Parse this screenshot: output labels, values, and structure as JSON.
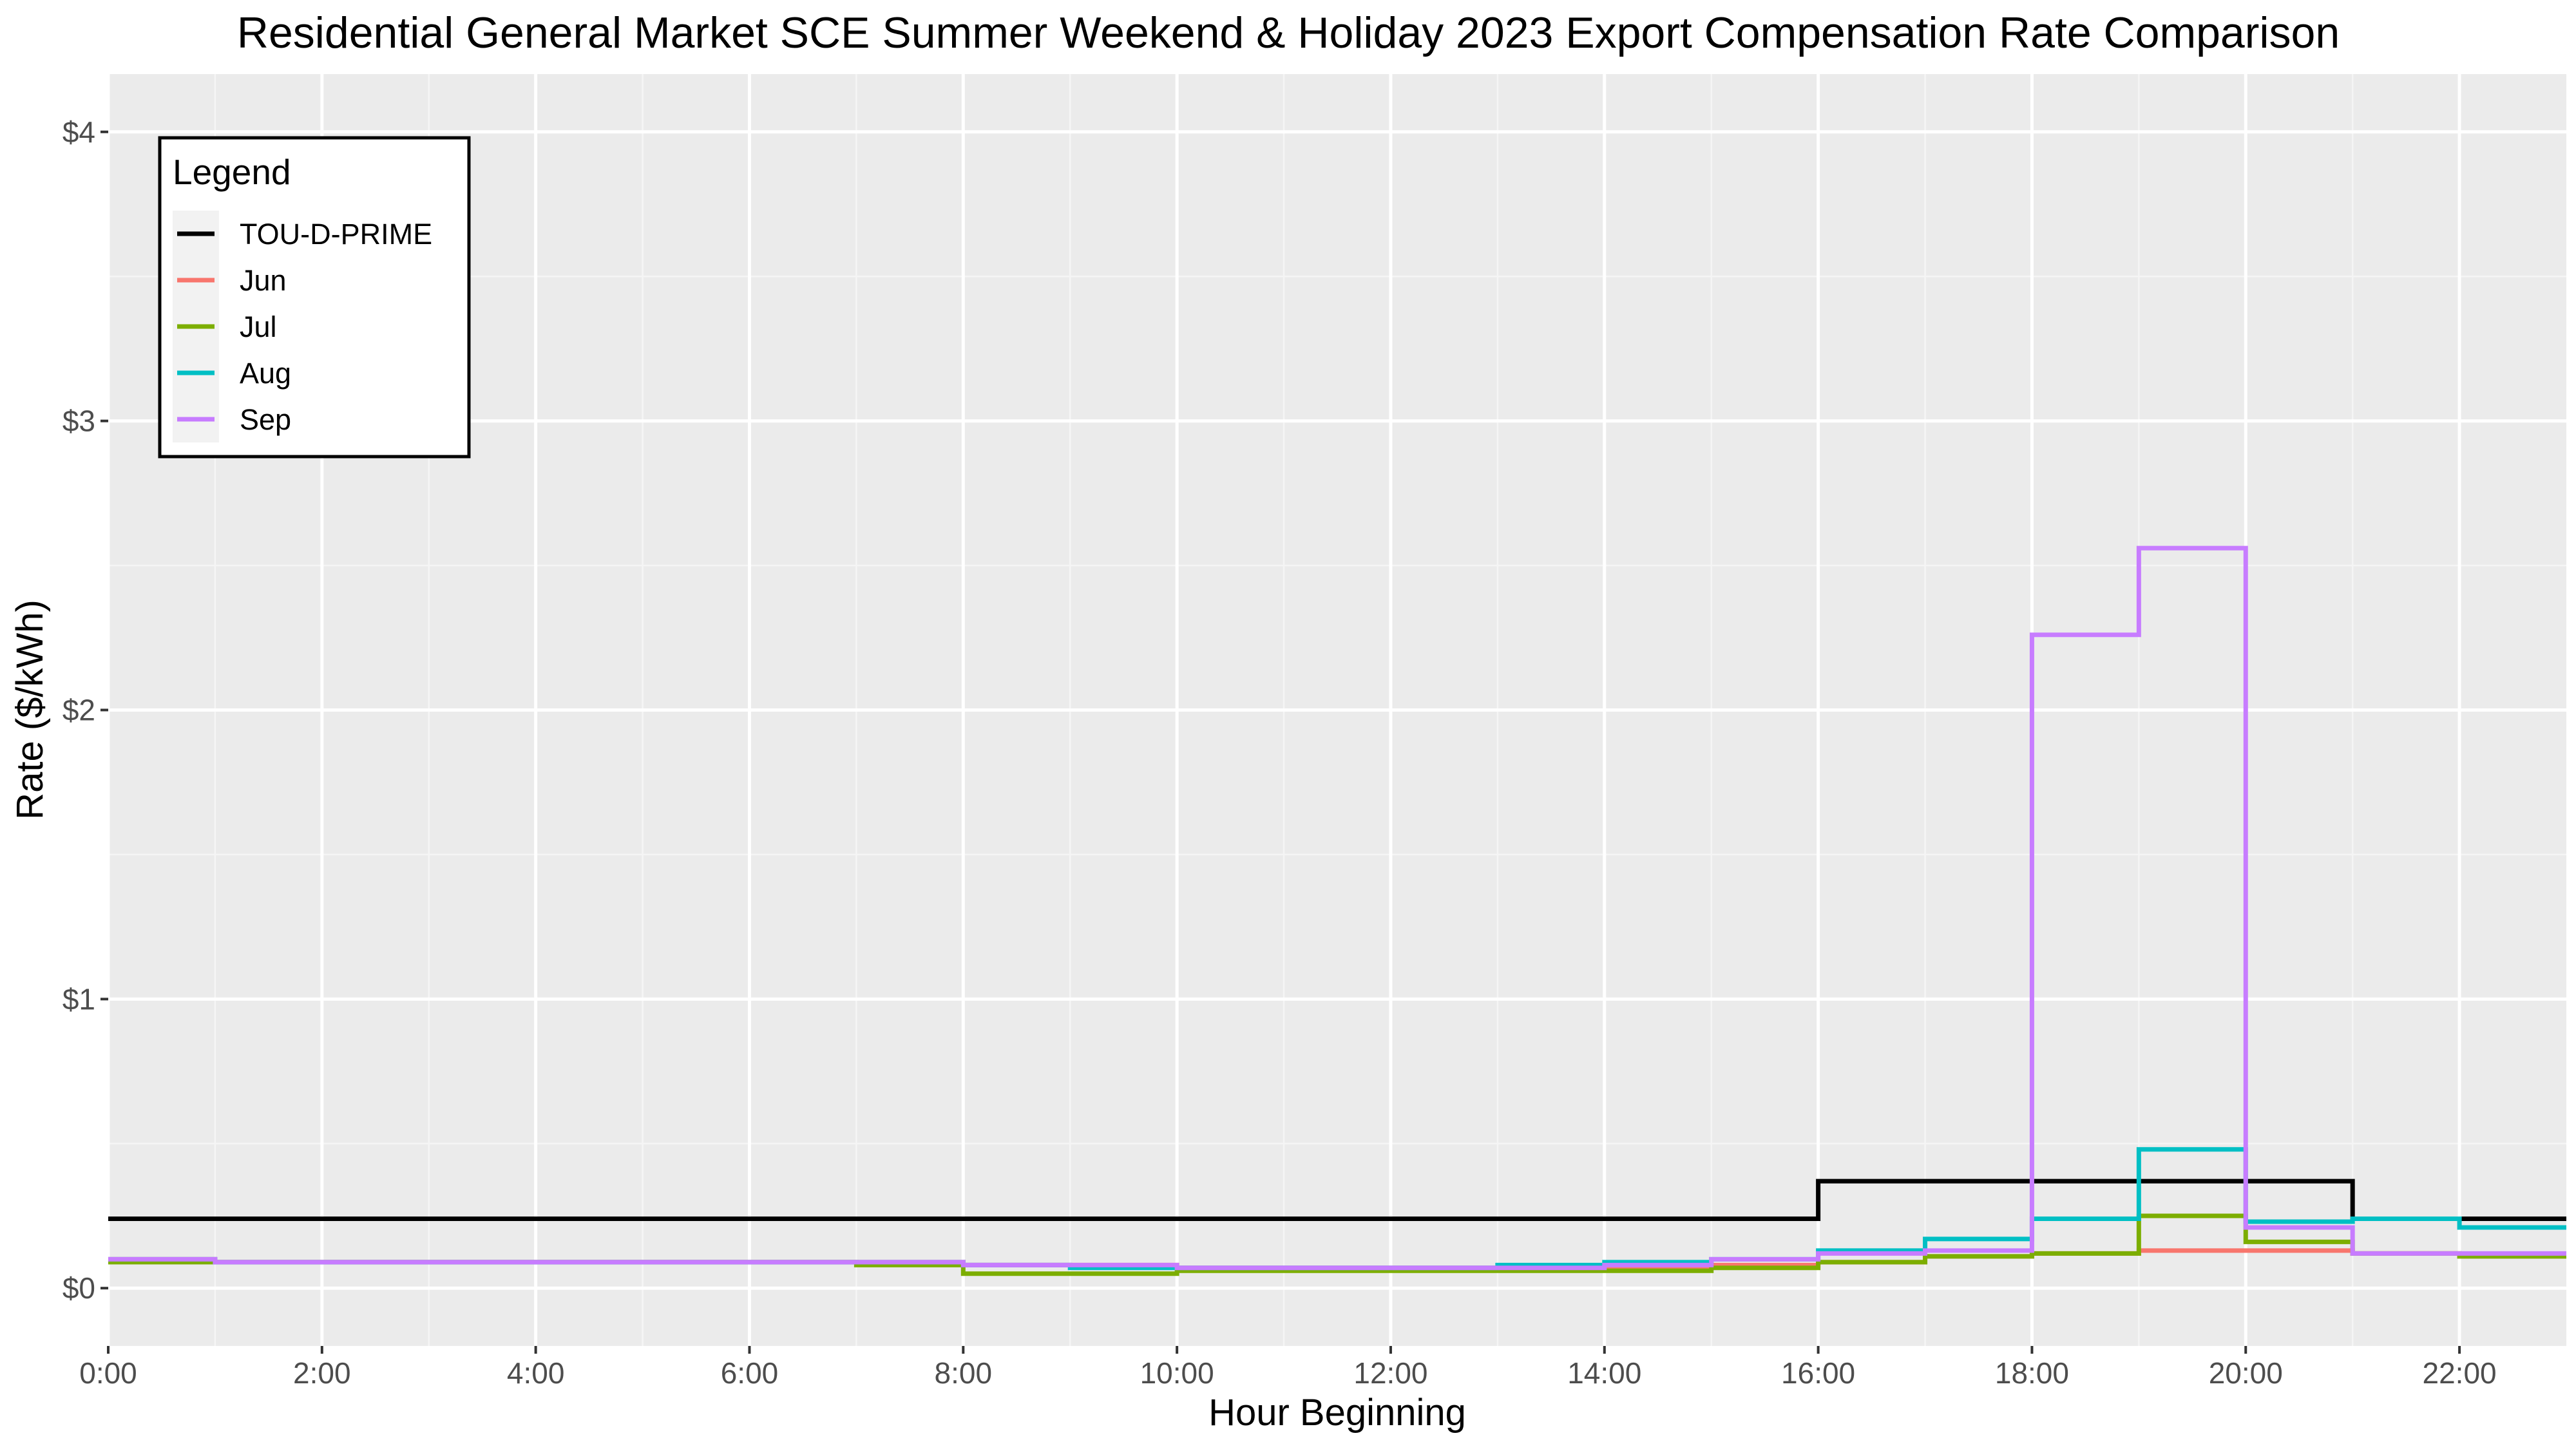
{
  "chart_data": {
    "type": "line",
    "step": "post",
    "title": "Residential General Market SCE Summer Weekend & Holiday 2023 Export Compensation Rate Comparison",
    "xlabel": "Hour Beginning",
    "ylabel": "Rate ($/kWh)",
    "xlim": [
      0,
      23
    ],
    "ylim": [
      -0.2,
      4.2
    ],
    "x_ticks": [
      0,
      2,
      4,
      6,
      8,
      10,
      12,
      14,
      16,
      18,
      20,
      22
    ],
    "x_tick_labels": [
      "0:00",
      "2:00",
      "4:00",
      "6:00",
      "8:00",
      "10:00",
      "12:00",
      "14:00",
      "16:00",
      "18:00",
      "20:00",
      "22:00"
    ],
    "y_ticks": [
      0,
      1,
      2,
      3,
      4
    ],
    "y_tick_labels": [
      "$0",
      "$1",
      "$2",
      "$3",
      "$4"
    ],
    "grid": true,
    "legend": {
      "title": "Legend",
      "position": "top-left"
    },
    "x": [
      0,
      1,
      2,
      3,
      4,
      5,
      6,
      7,
      8,
      9,
      10,
      11,
      12,
      13,
      14,
      15,
      16,
      17,
      18,
      19,
      20,
      21,
      22,
      23
    ],
    "series": [
      {
        "name": "TOU-D-PRIME",
        "color": "#000000",
        "values": [
          0.24,
          0.24,
          0.24,
          0.24,
          0.24,
          0.24,
          0.24,
          0.24,
          0.24,
          0.24,
          0.24,
          0.24,
          0.24,
          0.24,
          0.24,
          0.24,
          0.37,
          0.37,
          0.37,
          0.37,
          0.37,
          0.24,
          0.24,
          0.24
        ]
      },
      {
        "name": "Jun",
        "color": "#F8766D",
        "values": [
          0.1,
          0.09,
          0.09,
          0.09,
          0.09,
          0.09,
          0.09,
          0.09,
          0.08,
          0.08,
          0.07,
          0.07,
          0.07,
          0.07,
          0.07,
          0.08,
          0.09,
          0.11,
          0.12,
          0.13,
          0.13,
          0.12,
          0.11,
          0.11
        ]
      },
      {
        "name": "Jul",
        "color": "#7CAE00",
        "values": [
          0.09,
          0.09,
          0.09,
          0.09,
          0.09,
          0.09,
          0.09,
          0.08,
          0.05,
          0.05,
          0.06,
          0.06,
          0.06,
          0.06,
          0.06,
          0.07,
          0.09,
          0.11,
          0.12,
          0.25,
          0.16,
          0.12,
          0.11,
          0.11
        ]
      },
      {
        "name": "Aug",
        "color": "#00BFC4",
        "values": [
          0.1,
          0.09,
          0.09,
          0.09,
          0.09,
          0.09,
          0.09,
          0.09,
          0.08,
          0.07,
          0.07,
          0.07,
          0.07,
          0.08,
          0.09,
          0.1,
          0.13,
          0.17,
          0.24,
          0.48,
          0.23,
          0.24,
          0.21,
          0.21
        ]
      },
      {
        "name": "Sep",
        "color": "#C77CFF",
        "values": [
          0.1,
          0.09,
          0.09,
          0.09,
          0.09,
          0.09,
          0.09,
          0.09,
          0.08,
          0.08,
          0.07,
          0.07,
          0.07,
          0.07,
          0.08,
          0.1,
          0.12,
          0.13,
          2.26,
          2.56,
          0.21,
          0.12,
          0.12,
          0.12
        ]
      }
    ]
  }
}
